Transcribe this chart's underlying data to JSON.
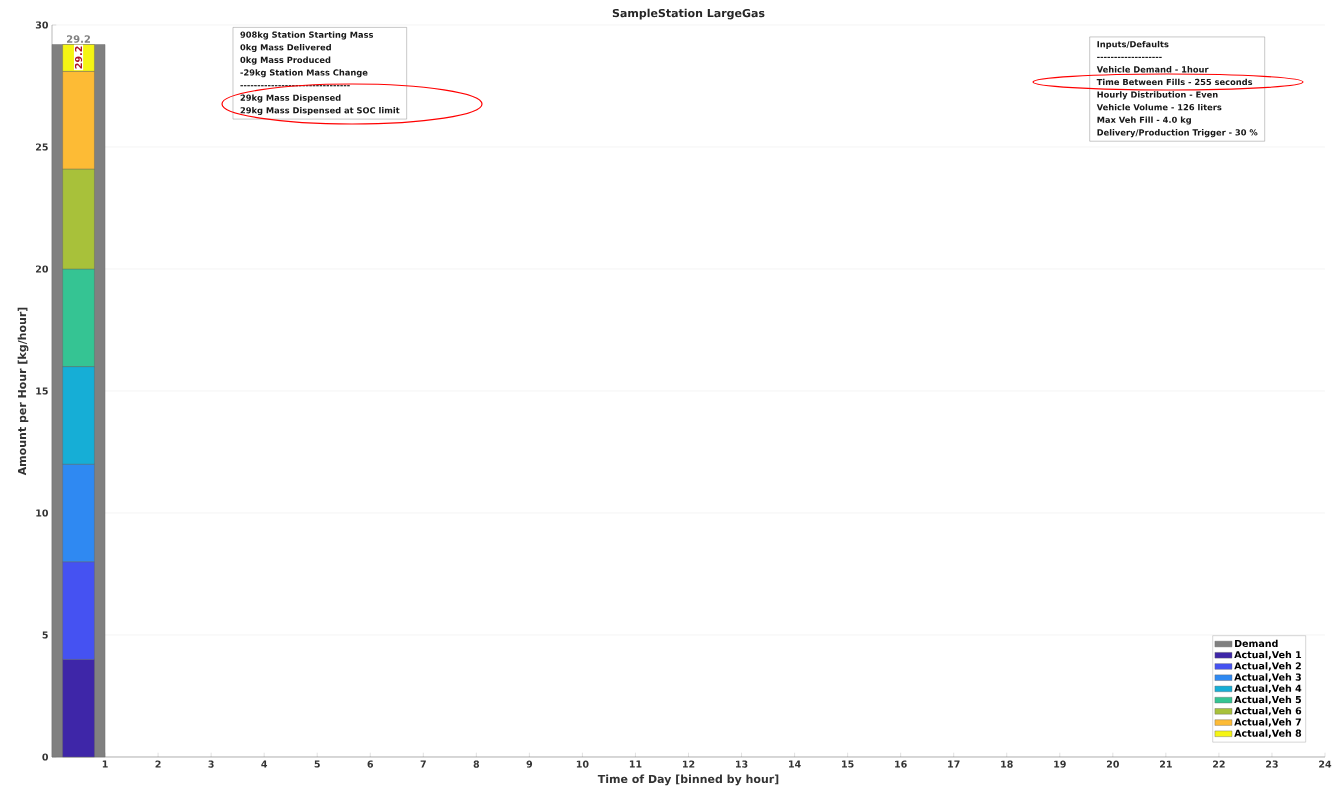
{
  "chart_data": {
    "type": "bar",
    "title": "SampleStation LargeGas",
    "xlabel": "Time of Day [binned by hour]",
    "ylabel": "Amount per Hour [kg/hour]",
    "x": [
      0.5
    ],
    "series": [
      {
        "name": "Demand",
        "color": "#808080",
        "values": [
          29.2
        ],
        "value_labels": [
          "29.2"
        ]
      },
      {
        "name": "Actual,Veh 1",
        "color": "#3e26a8",
        "values": [
          4.0
        ],
        "base": [
          0
        ]
      },
      {
        "name": "Actual,Veh 2",
        "color": "#4552f2",
        "values": [
          4.0
        ],
        "base": [
          4.0
        ]
      },
      {
        "name": "Actual,Veh 3",
        "color": "#2f89f2",
        "values": [
          4.0
        ],
        "base": [
          8.0
        ]
      },
      {
        "name": "Actual,Veh 4",
        "color": "#16aed6",
        "values": [
          4.0
        ],
        "base": [
          12.0
        ]
      },
      {
        "name": "Actual,Veh 5",
        "color": "#35c493",
        "values": [
          4.0
        ],
        "base": [
          16.0
        ]
      },
      {
        "name": "Actual,Veh 6",
        "color": "#a8c13a",
        "values": [
          4.1
        ],
        "base": [
          20.0
        ]
      },
      {
        "name": "Actual,Veh 7",
        "color": "#fdbb35",
        "values": [
          4.0
        ],
        "base": [
          24.1
        ]
      },
      {
        "name": "Actual,Veh 8",
        "color": "#f5f514",
        "values": [
          1.1
        ],
        "base": [
          28.1
        ]
      }
    ],
    "xlim": [
      0,
      24
    ],
    "xticks": [
      1,
      2,
      3,
      4,
      5,
      6,
      7,
      8,
      9,
      10,
      11,
      12,
      13,
      14,
      15,
      16,
      17,
      18,
      19,
      20,
      21,
      22,
      23,
      24
    ],
    "ylim": [
      0,
      30
    ],
    "yticks": [
      0,
      5,
      10,
      15,
      20,
      25,
      30
    ],
    "grid": "y",
    "legend": "bottom right",
    "annotations": [
      "908kg Station Starting Mass",
      "0kg Mass Delivered",
      "0kg Mass Produced",
      "-29kg Station Mass Change",
      "--------------------------------",
      "29kg Mass Dispensed",
      "29kg Mass Dispensed at SOC limit",
      {
        "text": "29.2",
        "x": 0.5,
        "y": 29.2
      },
      "Inputs/Defaults",
      "-------------------",
      "Vehicle Demand - 1hour",
      "Time Between Fills - 255 seconds",
      "Hourly Distribution - Even",
      "Vehicle Volume - 126 liters",
      "Max Veh Fill - 4.0 kg",
      "Delivery/Production Trigger - 30 %"
    ]
  }
}
